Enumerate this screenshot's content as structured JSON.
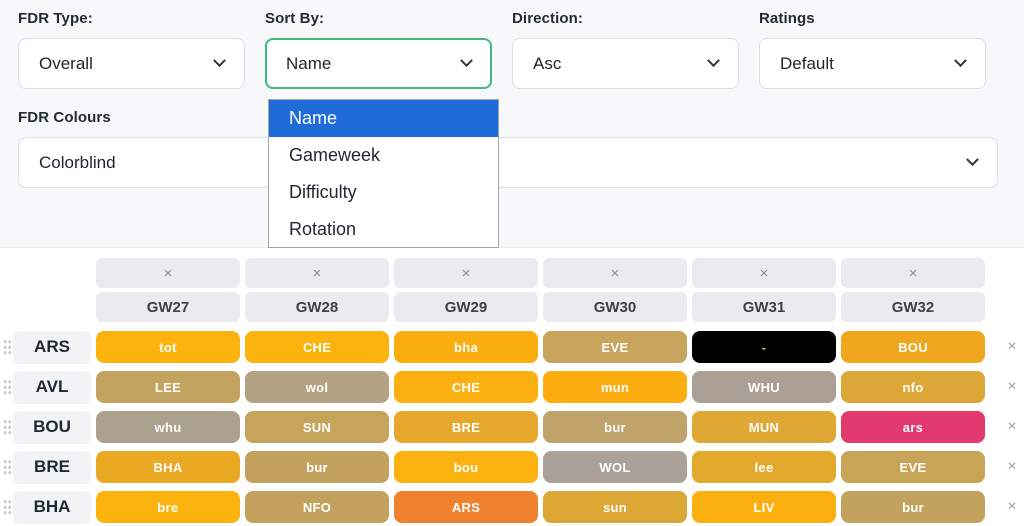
{
  "filters": {
    "fdr_type": {
      "label": "FDR Type:",
      "value": "Overall"
    },
    "sort_by": {
      "label": "Sort By:",
      "value": "Name"
    },
    "direction": {
      "label": "Direction:",
      "value": "Asc"
    },
    "ratings": {
      "label": "Ratings",
      "value": "Default"
    },
    "fdr_colours": {
      "label": "FDR Colours",
      "value": "Colorblind"
    }
  },
  "sort_dropdown": {
    "highlight_color": "#1f6cd9",
    "focus_border_color": "#3dba7e",
    "options": [
      {
        "label": "Name"
      },
      {
        "label": "Gameweek"
      },
      {
        "label": "Difficulty"
      },
      {
        "label": "Rotation"
      }
    ]
  },
  "icons": {
    "close_column": "×",
    "close_row": "×",
    "chevron_down": "chevron-down"
  },
  "ticker": {
    "gameweeks": [
      "GW27",
      "GW28",
      "GW29",
      "GW30",
      "GW31",
      "GW32"
    ],
    "rows": [
      {
        "team": "ARS",
        "fixtures": [
          {
            "opponent": "tot",
            "bg": "#FCB30D",
            "fg": "#FFFFFF"
          },
          {
            "opponent": "CHE",
            "bg": "#FCB30D",
            "fg": "#FFFFFF"
          },
          {
            "opponent": "bha",
            "bg": "#FBAE10",
            "fg": "#FFFFFF"
          },
          {
            "opponent": "EVE",
            "bg": "#C8A45C",
            "fg": "#FFFFFF"
          },
          {
            "opponent": "-",
            "bg": "#000000",
            "fg": "#E8B94A"
          },
          {
            "opponent": "BOU",
            "bg": "#EFA81D",
            "fg": "#FFFFFF"
          }
        ]
      },
      {
        "team": "AVL",
        "fixtures": [
          {
            "opponent": "LEE",
            "bg": "#C3A360",
            "fg": "#FFFFFF"
          },
          {
            "opponent": "wol",
            "bg": "#B3A284",
            "fg": "#FFFFFF"
          },
          {
            "opponent": "CHE",
            "bg": "#FCB00F",
            "fg": "#FFFFFF"
          },
          {
            "opponent": "mun",
            "bg": "#FCAE11",
            "fg": "#FFFFFF"
          },
          {
            "opponent": "WHU",
            "bg": "#ACA096",
            "fg": "#FFFFFF"
          },
          {
            "opponent": "nfo",
            "bg": "#DCA737",
            "fg": "#FFFFFF"
          }
        ]
      },
      {
        "team": "BOU",
        "fixtures": [
          {
            "opponent": "whu",
            "bg": "#ACA08F",
            "fg": "#FFFFFF"
          },
          {
            "opponent": "SUN",
            "bg": "#C5A45C",
            "fg": "#FFFFFF"
          },
          {
            "opponent": "BRE",
            "bg": "#E5A72C",
            "fg": "#FFFFFF"
          },
          {
            "opponent": "bur",
            "bg": "#C0A26B",
            "fg": "#FFFFFF"
          },
          {
            "opponent": "MUN",
            "bg": "#DFA733",
            "fg": "#FFFFFF"
          },
          {
            "opponent": "ars",
            "bg": "#E23A6E",
            "fg": "#FFFFFF"
          }
        ]
      },
      {
        "team": "BRE",
        "fixtures": [
          {
            "opponent": "BHA",
            "bg": "#EAA923",
            "fg": "#FFFFFF"
          },
          {
            "opponent": "bur",
            "bg": "#C3A25F",
            "fg": "#FFFFFF"
          },
          {
            "opponent": "bou",
            "bg": "#FCB20E",
            "fg": "#FFFFFF"
          },
          {
            "opponent": "WOL",
            "bg": "#ABA199",
            "fg": "#FFFFFF"
          },
          {
            "opponent": "lee",
            "bg": "#E3A92C",
            "fg": "#FFFFFF"
          },
          {
            "opponent": "EVE",
            "bg": "#C8A457",
            "fg": "#FFFFFF"
          }
        ]
      },
      {
        "team": "BHA",
        "fixtures": [
          {
            "opponent": "bre",
            "bg": "#FCB30D",
            "fg": "#FFFFFF"
          },
          {
            "opponent": "NFO",
            "bg": "#C3A25F",
            "fg": "#FFFFFF"
          },
          {
            "opponent": "ARS",
            "bg": "#F0822F",
            "fg": "#FFFFFF"
          },
          {
            "opponent": "sun",
            "bg": "#DDA735",
            "fg": "#FFFFFF"
          },
          {
            "opponent": "LIV",
            "bg": "#FCB00F",
            "fg": "#FFFFFF"
          },
          {
            "opponent": "bur",
            "bg": "#C2A35E",
            "fg": "#FFFFFF"
          }
        ]
      }
    ]
  }
}
